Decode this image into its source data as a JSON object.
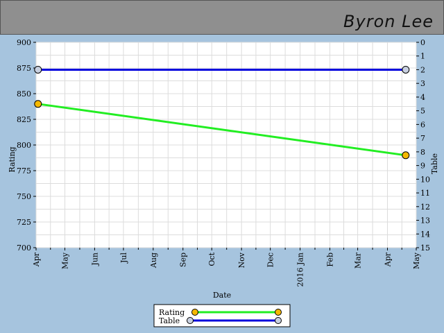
{
  "header": {
    "name": "Byron Lee"
  },
  "chart_data": {
    "type": "line",
    "xlabel": "Date",
    "ylabel_left": "Rating",
    "ylabel_right": "Table",
    "x_ticks": [
      {
        "label": "Apr",
        "date": "2015-04-01"
      },
      {
        "label": "May",
        "date": "2015-05-01"
      },
      {
        "label": "Jun",
        "date": "2015-06-01"
      },
      {
        "label": "Jul",
        "date": "2015-07-01"
      },
      {
        "label": "Aug",
        "date": "2015-08-01"
      },
      {
        "label": "Sep",
        "date": "2015-09-01"
      },
      {
        "label": "Oct",
        "date": "2015-10-01"
      },
      {
        "label": "Nov",
        "date": "2015-11-01"
      },
      {
        "label": "Dec",
        "date": "2015-12-01"
      },
      {
        "label": "2016 Jan",
        "date": "2016-01-01"
      },
      {
        "label": "Feb",
        "date": "2016-02-01"
      },
      {
        "label": "Mar",
        "date": "2016-03-01"
      },
      {
        "label": "Apr",
        "date": "2016-04-01"
      },
      {
        "label": "May",
        "date": "2016-05-01"
      }
    ],
    "xlim": [
      "2015-04-01",
      "2016-05-01"
    ],
    "ylim_left": [
      700,
      900
    ],
    "y_ticks_left": [
      700,
      725,
      750,
      775,
      800,
      825,
      850,
      875,
      900
    ],
    "ylim_right": [
      15,
      0
    ],
    "y_ticks_right": [
      0,
      1,
      2,
      3,
      4,
      5,
      6,
      7,
      8,
      9,
      10,
      11,
      12,
      13,
      14,
      15
    ],
    "grid": true,
    "series": [
      {
        "name": "Rating",
        "axis": "left",
        "color": "#22ee22",
        "marker_color": "#f5b800",
        "points": [
          {
            "x": "2015-04-03",
            "y": 840
          },
          {
            "x": "2016-04-20",
            "y": 790
          }
        ]
      },
      {
        "name": "Table",
        "axis": "right",
        "color": "#0000dd",
        "marker_color": "#c8d0e0",
        "points": [
          {
            "x": "2015-04-03",
            "y": 2
          },
          {
            "x": "2016-04-20",
            "y": 2
          }
        ]
      }
    ],
    "legend_position": "bottom-center"
  }
}
